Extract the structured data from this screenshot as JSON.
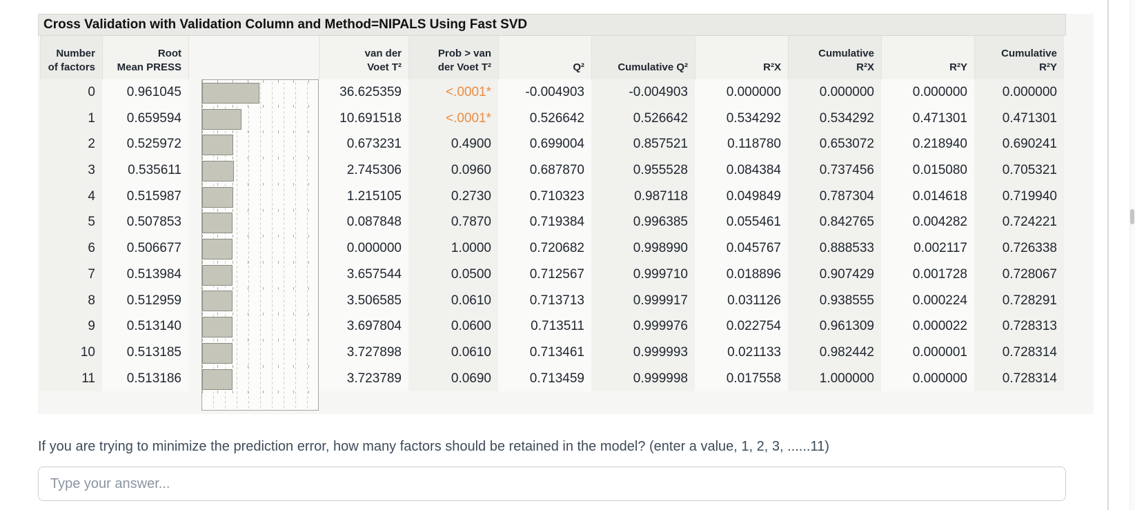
{
  "report": {
    "title": "Cross Validation with Validation Column and Method=NIPALS Using Fast SVD",
    "columns": [
      {
        "line1": "Number",
        "line2": "of factors"
      },
      {
        "line1": "Root",
        "line2": "Mean PRESS"
      },
      {
        "line1": "",
        "line2": ""
      },
      {
        "line1": "van der",
        "line2": "Voet T²"
      },
      {
        "line1": "Prob > van",
        "line2": "der Voet T²"
      },
      {
        "line1": "",
        "line2": "Q²"
      },
      {
        "line1": "",
        "line2": "Cumulative Q²"
      },
      {
        "line1": "",
        "line2": "R²X"
      },
      {
        "line1": "Cumulative",
        "line2": "R²X"
      },
      {
        "line1": "",
        "line2": "R²Y"
      },
      {
        "line1": "Cumulative",
        "line2": "R²Y"
      }
    ],
    "bar_axis_max": 1.95,
    "rows": [
      {
        "factors": "0",
        "root_mean_press": "0.961045",
        "van_der_voet_t2": "36.625359",
        "prob": "<.0001*",
        "prob_significant": true,
        "q2": "-0.004903",
        "cum_q2": "-0.004903",
        "r2x": "0.000000",
        "cum_r2x": "0.000000",
        "r2y": "0.000000",
        "cum_r2y": "0.000000"
      },
      {
        "factors": "1",
        "root_mean_press": "0.659594",
        "van_der_voet_t2": "10.691518",
        "prob": "<.0001*",
        "prob_significant": true,
        "q2": "0.526642",
        "cum_q2": "0.526642",
        "r2x": "0.534292",
        "cum_r2x": "0.534292",
        "r2y": "0.471301",
        "cum_r2y": "0.471301"
      },
      {
        "factors": "2",
        "root_mean_press": "0.525972",
        "van_der_voet_t2": "0.673231",
        "prob": "0.4900",
        "prob_significant": false,
        "q2": "0.699004",
        "cum_q2": "0.857521",
        "r2x": "0.118780",
        "cum_r2x": "0.653072",
        "r2y": "0.218940",
        "cum_r2y": "0.690241"
      },
      {
        "factors": "3",
        "root_mean_press": "0.535611",
        "van_der_voet_t2": "2.745306",
        "prob": "0.0960",
        "prob_significant": false,
        "q2": "0.687870",
        "cum_q2": "0.955528",
        "r2x": "0.084384",
        "cum_r2x": "0.737456",
        "r2y": "0.015080",
        "cum_r2y": "0.705321"
      },
      {
        "factors": "4",
        "root_mean_press": "0.515987",
        "van_der_voet_t2": "1.215105",
        "prob": "0.2730",
        "prob_significant": false,
        "q2": "0.710323",
        "cum_q2": "0.987118",
        "r2x": "0.049849",
        "cum_r2x": "0.787304",
        "r2y": "0.014618",
        "cum_r2y": "0.719940"
      },
      {
        "factors": "5",
        "root_mean_press": "0.507853",
        "van_der_voet_t2": "0.087848",
        "prob": "0.7870",
        "prob_significant": false,
        "q2": "0.719384",
        "cum_q2": "0.996385",
        "r2x": "0.055461",
        "cum_r2x": "0.842765",
        "r2y": "0.004282",
        "cum_r2y": "0.724221"
      },
      {
        "factors": "6",
        "root_mean_press": "0.506677",
        "van_der_voet_t2": "0.000000",
        "prob": "1.0000",
        "prob_significant": false,
        "q2": "0.720682",
        "cum_q2": "0.998990",
        "r2x": "0.045767",
        "cum_r2x": "0.888533",
        "r2y": "0.002117",
        "cum_r2y": "0.726338"
      },
      {
        "factors": "7",
        "root_mean_press": "0.513984",
        "van_der_voet_t2": "3.657544",
        "prob": "0.0500",
        "prob_significant": false,
        "q2": "0.712567",
        "cum_q2": "0.999710",
        "r2x": "0.018896",
        "cum_r2x": "0.907429",
        "r2y": "0.001728",
        "cum_r2y": "0.728067"
      },
      {
        "factors": "8",
        "root_mean_press": "0.512959",
        "van_der_voet_t2": "3.506585",
        "prob": "0.0610",
        "prob_significant": false,
        "q2": "0.713713",
        "cum_q2": "0.999917",
        "r2x": "0.031126",
        "cum_r2x": "0.938555",
        "r2y": "0.000224",
        "cum_r2y": "0.728291"
      },
      {
        "factors": "9",
        "root_mean_press": "0.513140",
        "van_der_voet_t2": "3.697804",
        "prob": "0.0600",
        "prob_significant": false,
        "q2": "0.713511",
        "cum_q2": "0.999976",
        "r2x": "0.022754",
        "cum_r2x": "0.961309",
        "r2y": "0.000022",
        "cum_r2y": "0.728313"
      },
      {
        "factors": "10",
        "root_mean_press": "0.513185",
        "van_der_voet_t2": "3.727898",
        "prob": "0.0610",
        "prob_significant": false,
        "q2": "0.713461",
        "cum_q2": "0.999993",
        "r2x": "0.021133",
        "cum_r2x": "0.982442",
        "r2y": "0.000001",
        "cum_r2y": "0.728314"
      },
      {
        "factors": "11",
        "root_mean_press": "0.513186",
        "van_der_voet_t2": "3.723789",
        "prob": "0.0690",
        "prob_significant": false,
        "q2": "0.713459",
        "cum_q2": "0.999998",
        "r2x": "0.017558",
        "cum_r2x": "1.000000",
        "r2y": "0.000000",
        "cum_r2y": "0.728314"
      }
    ]
  },
  "question": {
    "text": "If  you are trying to minimize the prediction error, how many factors should be retained in the model? (enter a value, 1, 2, 3, ......11)",
    "input_placeholder": "Type your answer..."
  },
  "colors": {
    "significant_prob": "#ed8b3f",
    "bar_fill": "#c5c5ba",
    "bar_border": "#8c8c83",
    "report_background": "#f6f6f4",
    "title_bar_background": "#e9e9e6"
  }
}
